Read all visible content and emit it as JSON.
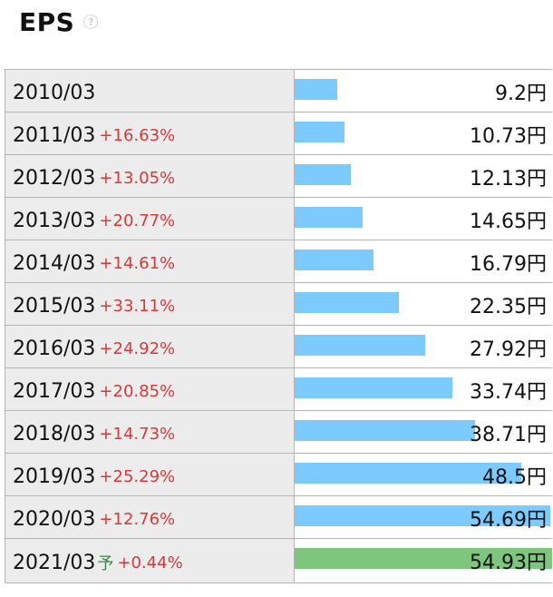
{
  "header": {
    "title": "EPS",
    "help_icon": "question-circle-icon",
    "help_glyph": "?"
  },
  "chart_data": {
    "type": "bar",
    "title": "EPS",
    "unit": "円",
    "forecast_marker": "予",
    "colors": {
      "actual": "#7dcaff",
      "forecast": "#7ec67e",
      "growth": "#d23b3b",
      "forecast_marker": "#2e8b3e"
    },
    "rows": [
      {
        "year": "2010/03",
        "growth": "",
        "value": 9.2,
        "value_label": "9.2",
        "forecast": false
      },
      {
        "year": "2011/03",
        "growth": "+16.63%",
        "value": 10.73,
        "value_label": "10.73",
        "forecast": false
      },
      {
        "year": "2012/03",
        "growth": "+13.05%",
        "value": 12.13,
        "value_label": "12.13",
        "forecast": false
      },
      {
        "year": "2013/03",
        "growth": "+20.77%",
        "value": 14.65,
        "value_label": "14.65",
        "forecast": false
      },
      {
        "year": "2014/03",
        "growth": "+14.61%",
        "value": 16.79,
        "value_label": "16.79",
        "forecast": false
      },
      {
        "year": "2015/03",
        "growth": "+33.11%",
        "value": 22.35,
        "value_label": "22.35",
        "forecast": false
      },
      {
        "year": "2016/03",
        "growth": "+24.92%",
        "value": 27.92,
        "value_label": "27.92",
        "forecast": false
      },
      {
        "year": "2017/03",
        "growth": "+20.85%",
        "value": 33.74,
        "value_label": "33.74",
        "forecast": false
      },
      {
        "year": "2018/03",
        "growth": "+14.73%",
        "value": 38.71,
        "value_label": "38.71",
        "forecast": false
      },
      {
        "year": "2019/03",
        "growth": "+25.29%",
        "value": 48.5,
        "value_label": "48.5",
        "forecast": false
      },
      {
        "year": "2020/03",
        "growth": "+12.76%",
        "value": 54.69,
        "value_label": "54.69",
        "forecast": false
      },
      {
        "year": "2021/03",
        "growth": "+0.44%",
        "value": 54.93,
        "value_label": "54.93",
        "forecast": true
      }
    ]
  }
}
